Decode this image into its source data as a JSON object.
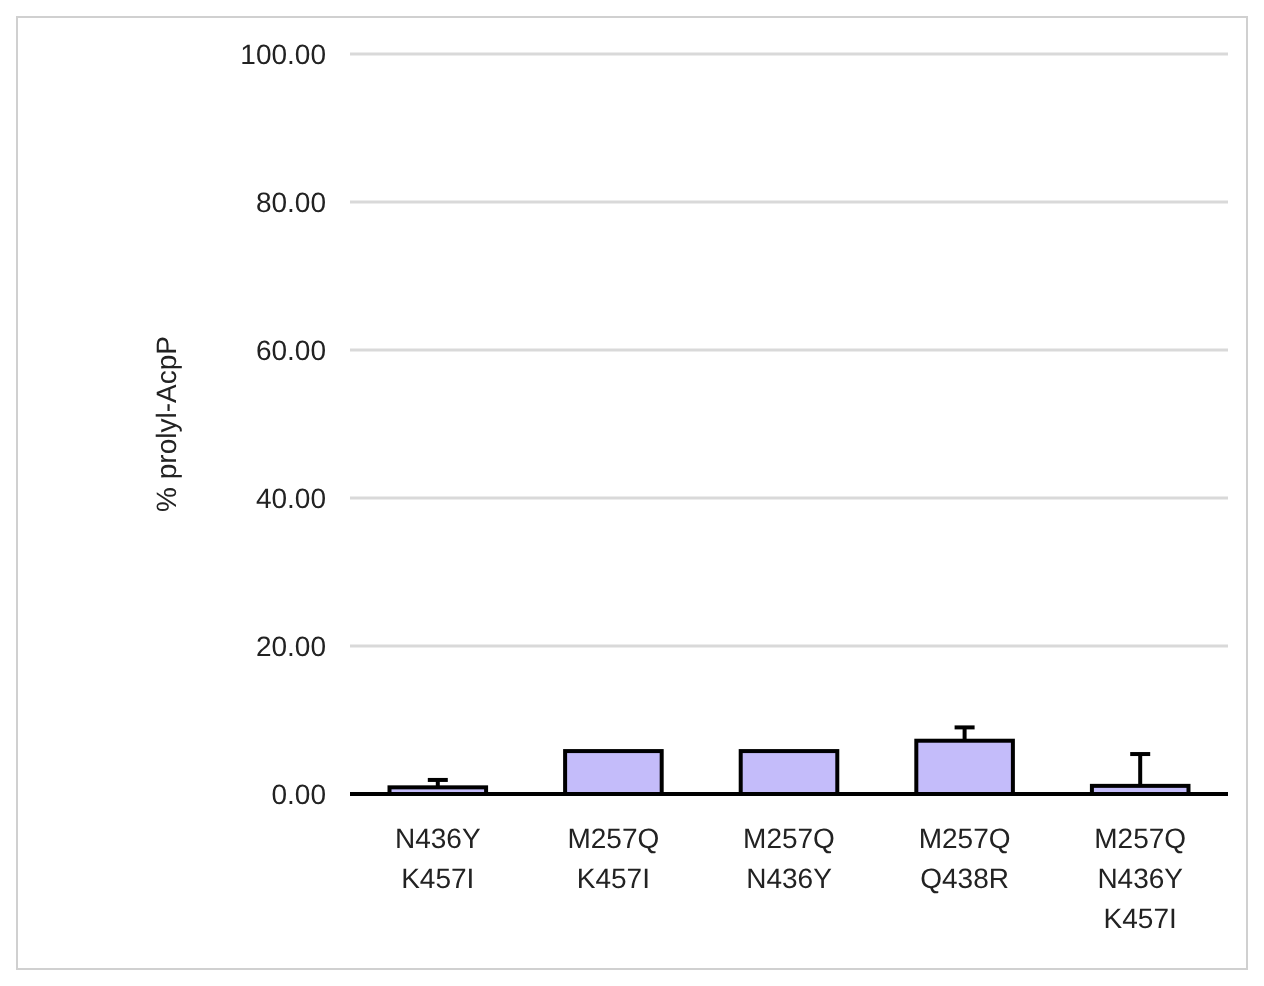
{
  "chart_data": {
    "type": "bar",
    "ylabel": "% prolyl-AcpP",
    "categories": [
      "N436Y\nK457I",
      "M257Q\nK457I",
      "M257Q\nN436Y",
      "M257Q\nQ438R",
      "M257Q\nN436Y\nK457I"
    ],
    "values": [
      0.9,
      5.8,
      5.8,
      7.2,
      1.1
    ],
    "errors": [
      [
        0.9,
        1.9
      ],
      null,
      null,
      [
        7.2,
        9.0
      ],
      [
        1.1,
        5.4
      ]
    ],
    "color": "#c4bcfa",
    "ylim": [
      0,
      100
    ],
    "yticks": [
      {
        "value": 0,
        "label": "0.00"
      },
      {
        "value": 20,
        "label": "20.00"
      },
      {
        "value": 40,
        "label": "40.00"
      },
      {
        "value": 60,
        "label": "60.00"
      },
      {
        "value": 80,
        "label": "80.00"
      },
      {
        "value": 100,
        "label": "100.00"
      }
    ],
    "grid": "y"
  }
}
